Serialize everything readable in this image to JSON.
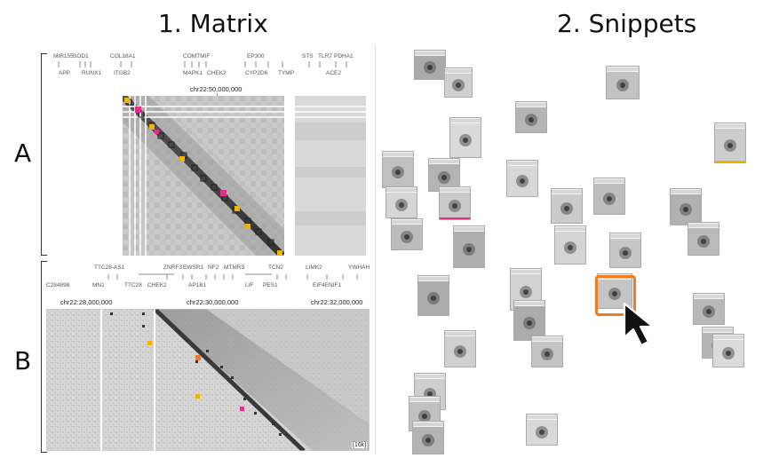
{
  "header": {
    "matrix_title": "1. Matrix",
    "snippets_title": "2. Snippets"
  },
  "rows": {
    "a_label": "A",
    "b_label": "B"
  },
  "panel_a": {
    "genes_top": [
      "MIR155",
      "SOD1",
      "COL18A1",
      "COMTMIF",
      "EP300",
      "STS",
      "TLR7",
      "PDHA1"
    ],
    "genes_bottom": [
      "APP",
      "RUNX1",
      "ITGB2",
      "MAPK1",
      "CHEK2",
      "CYP2D6",
      "TYMP",
      "ACE2"
    ],
    "coordinate": "chr22:50,000,000"
  },
  "panel_b": {
    "genes_top": [
      "TTC28-AS1",
      "ZNRF3",
      "EWSR1",
      "NF2",
      "MTMR3",
      "TCN2",
      "LIMK2",
      "YWHAH"
    ],
    "genes_bottom": [
      "C284898",
      "MN1",
      "TTC28",
      "CHEK2",
      "AP1B1",
      "LIF",
      "PES1",
      "EIF4ENIF1"
    ],
    "coordinates": [
      "chr22:28,000,000",
      "chr22:30,000,000",
      "chr22:32,000,000"
    ],
    "scale_label": "[16k]"
  },
  "colors": {
    "highlight": "#f07a22",
    "magenta": "#e0308c",
    "gold": "#f0b400"
  }
}
